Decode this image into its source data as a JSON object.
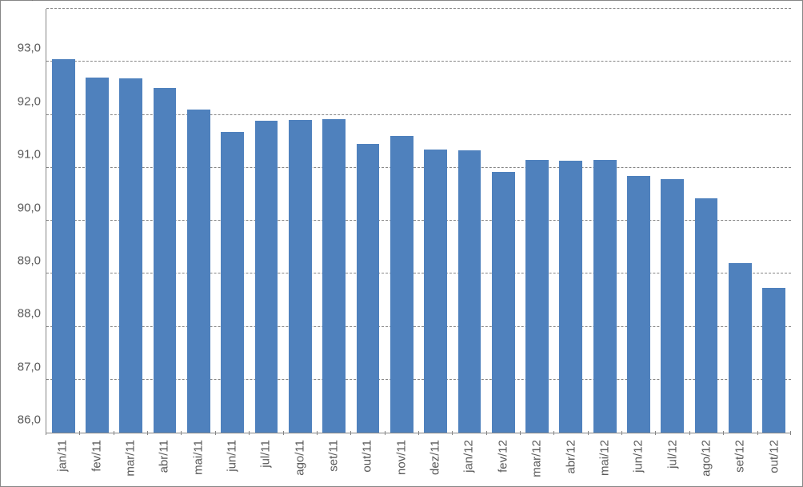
{
  "chart": {
    "type": "bar",
    "background_color": "#ffffff",
    "border_color": "#868686",
    "bar_color": "#4f81bd",
    "grid_color": "#868686",
    "grid_dash": true,
    "text_color": "#595959",
    "font_family": "Arial",
    "label_fontsize": 15,
    "bar_width": 0.68,
    "decimal_separator": ",",
    "ylim": [
      86.0,
      94.0
    ],
    "ytick_step": 1.0,
    "yticks": [
      "86,0",
      "87,0",
      "88,0",
      "89,0",
      "90,0",
      "91,0",
      "92,0",
      "93,0",
      "94,0"
    ],
    "categories": [
      "jan/11",
      "fev/11",
      "mar/11",
      "abr/11",
      "mai/11",
      "jun/11",
      "jul/11",
      "ago/11",
      "set/11",
      "out/11",
      "nov/11",
      "dez/11",
      "jan/12",
      "fev/12",
      "mar/12",
      "abr/12",
      "mai/12",
      "jun/12",
      "jul/12",
      "ago/12",
      "set/12",
      "out/12"
    ],
    "values": [
      93.05,
      92.7,
      92.68,
      92.5,
      92.1,
      91.68,
      91.88,
      91.9,
      91.92,
      91.45,
      91.6,
      91.35,
      91.33,
      90.92,
      91.15,
      91.13,
      91.15,
      90.85,
      90.78,
      90.43,
      89.2,
      88.73
    ]
  }
}
